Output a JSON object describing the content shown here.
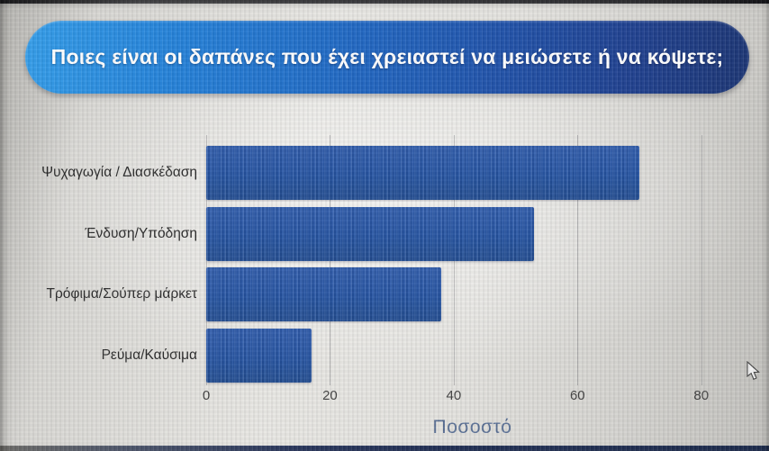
{
  "title_banner": {
    "text": "Ποιες είναι οι δαπάνες που έχει χρειαστεί να μειώσετε ή να κόψετε;",
    "gradient_left": "#2e9ae8",
    "gradient_right": "#163070",
    "text_color": "#ffffff"
  },
  "chart_data": {
    "type": "bar",
    "orientation": "horizontal",
    "title": "Ποιες είναι οι δαπάνες που έχει χρειαστεί να μειώσετε ή να κόψετε;",
    "categories": [
      "Ψυχαγωγία / Διασκέδαση",
      "Ένδυση/Υπόδηση",
      "Τρόφιμα/Σούπερ μάρκετ",
      "Ρεύμα/Καύσιμα"
    ],
    "values": [
      70,
      53,
      38,
      17
    ],
    "xlabel": "Ποσοστό",
    "ylabel": "",
    "x_ticks": [
      0,
      20,
      40,
      60,
      80
    ],
    "xlim": [
      0,
      86
    ],
    "grid": true,
    "legend": false,
    "bar_color": "#1f4fa0"
  },
  "pointer": {
    "name": "arrow-cursor"
  }
}
